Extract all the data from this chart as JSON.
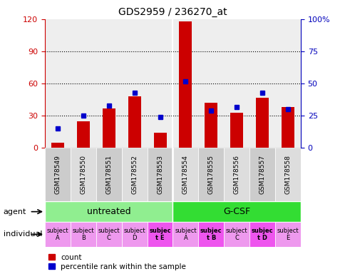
{
  "title": "GDS2959 / 236270_at",
  "samples": [
    "GSM178549",
    "GSM178550",
    "GSM178551",
    "GSM178552",
    "GSM178553",
    "GSM178554",
    "GSM178555",
    "GSM178556",
    "GSM178557",
    "GSM178558"
  ],
  "counts": [
    5,
    25,
    37,
    48,
    14,
    118,
    42,
    33,
    47,
    38
  ],
  "percentile_ranks": [
    15,
    25,
    33,
    43,
    24,
    52,
    29,
    32,
    43,
    30
  ],
  "ylim_left": [
    0,
    120
  ],
  "ylim_right": [
    0,
    100
  ],
  "yticks_left": [
    0,
    30,
    60,
    90,
    120
  ],
  "yticks_right": [
    0,
    25,
    50,
    75,
    100
  ],
  "yticklabels_right": [
    "0",
    "25",
    "50",
    "75",
    "100%"
  ],
  "agent_groups": [
    {
      "label": "untreated",
      "start": 0,
      "end": 5,
      "color": "#90EE90"
    },
    {
      "label": "G-CSF",
      "start": 5,
      "end": 10,
      "color": "#33DD33"
    }
  ],
  "individual_labels": [
    "subject\nA",
    "subject\nB",
    "subject\nC",
    "subject\nD",
    "subjec\nt E",
    "subject\nA",
    "subjec\nt B",
    "subject\nC",
    "subjec\nt D",
    "subject\nE"
  ],
  "individual_bold": [
    false,
    false,
    false,
    false,
    true,
    false,
    true,
    false,
    true,
    false
  ],
  "individual_colors": [
    "#EE99EE",
    "#EE99EE",
    "#EE99EE",
    "#EE99EE",
    "#EE55EE",
    "#EE99EE",
    "#EE55EE",
    "#EE99EE",
    "#EE55EE",
    "#EE99EE"
  ],
  "bar_color": "#CC0000",
  "square_color": "#0000CC",
  "bg_color": "#FFFFFF",
  "tick_color_left": "#CC0000",
  "tick_color_right": "#0000BB",
  "label_left_agent": "agent",
  "label_left_indiv": "individual",
  "legend_count": "count",
  "legend_pct": "percentile rank within the sample"
}
